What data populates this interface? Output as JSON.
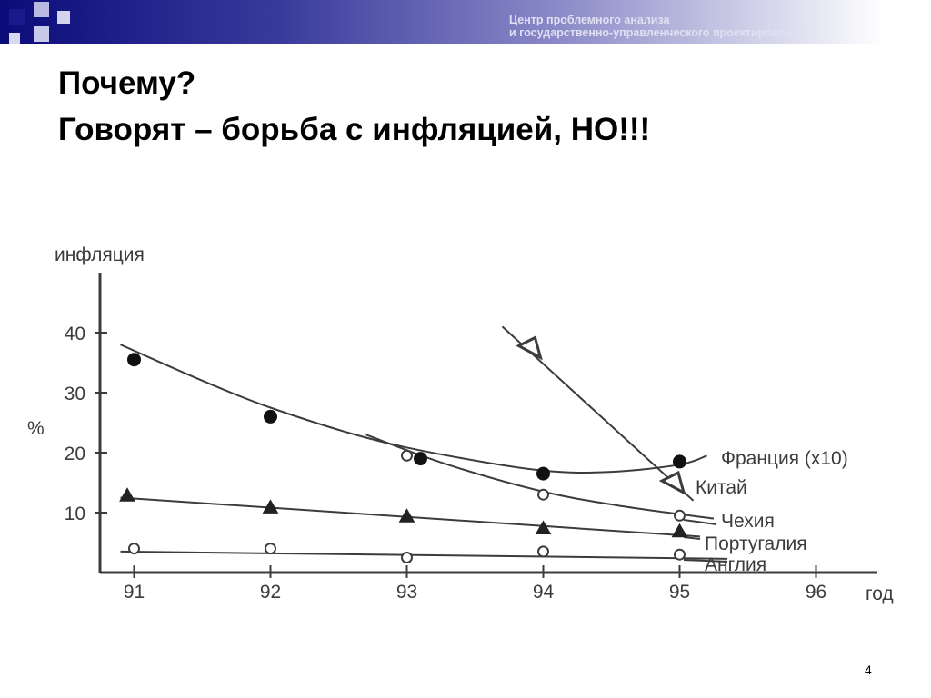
{
  "header": {
    "org_line1": "Центр проблемного анализа",
    "org_line2": "и государственно-управленческого проектирования"
  },
  "slide": {
    "title_line1": "Почему?",
    "title_line2": "Говорят – борьба с инфляцией, НО!!!",
    "page_number": "4"
  },
  "colors": {
    "band_dark": "#0b0b7a",
    "accent_square": "#1a1a8c",
    "chart_ink": "#3c3c3c"
  },
  "chart_data": {
    "type": "scatter",
    "ylabel_top": "инфляция",
    "ylabel_side": "%",
    "xlabel": "год",
    "xlim": [
      90.75,
      96.45
    ],
    "ylim": [
      0,
      50
    ],
    "x_ticks": [
      "91",
      "92",
      "93",
      "94",
      "95",
      "96"
    ],
    "y_ticks": [
      "10",
      "20",
      "30",
      "40"
    ],
    "series": [
      {
        "name": "Франция (x10)",
        "marker": "filled-circle",
        "points": [
          [
            91.0,
            35.5
          ],
          [
            92.0,
            26.0
          ],
          [
            93.1,
            19.0
          ],
          [
            94.0,
            16.5
          ],
          [
            95.0,
            18.5
          ]
        ],
        "trend": [
          [
            90.9,
            38.0
          ],
          [
            91.5,
            32.0
          ],
          [
            92.0,
            27.5
          ],
          [
            92.7,
            22.5
          ],
          [
            93.3,
            19.5
          ],
          [
            94.0,
            17.0
          ],
          [
            94.5,
            16.8
          ],
          [
            95.0,
            18.0
          ],
          [
            95.2,
            19.5
          ]
        ]
      },
      {
        "name": "Китай",
        "marker": "open-triangle",
        "points": [
          [
            93.9,
            37.5
          ],
          [
            94.95,
            15.0
          ]
        ],
        "trend": [
          [
            93.7,
            41.0
          ],
          [
            95.1,
            12.0
          ]
        ]
      },
      {
        "name": "Чехия",
        "marker": "open-circle",
        "points": [
          [
            93.0,
            19.5
          ],
          [
            94.0,
            13.0
          ],
          [
            95.0,
            9.5
          ]
        ],
        "trend": [
          [
            92.7,
            23.0
          ],
          [
            93.3,
            18.0
          ],
          [
            94.0,
            13.5
          ],
          [
            94.6,
            11.0
          ],
          [
            95.25,
            9.0
          ]
        ]
      },
      {
        "name": "Португалия",
        "marker": "filled-triangle",
        "points": [
          [
            90.95,
            13.0
          ],
          [
            92.0,
            11.0
          ],
          [
            93.0,
            9.5
          ],
          [
            94.0,
            7.5
          ],
          [
            95.0,
            7.0
          ]
        ],
        "trend": [
          [
            90.9,
            12.5
          ],
          [
            95.15,
            6.0
          ]
        ]
      },
      {
        "name": "Англия",
        "marker": "open-circle",
        "points": [
          [
            91.0,
            4.0
          ],
          [
            92.0,
            4.0
          ],
          [
            93.0,
            2.5
          ],
          [
            94.0,
            3.5
          ],
          [
            95.0,
            3.0
          ]
        ],
        "trend": [
          [
            90.9,
            3.5
          ],
          [
            95.35,
            2.3
          ]
        ]
      }
    ]
  }
}
